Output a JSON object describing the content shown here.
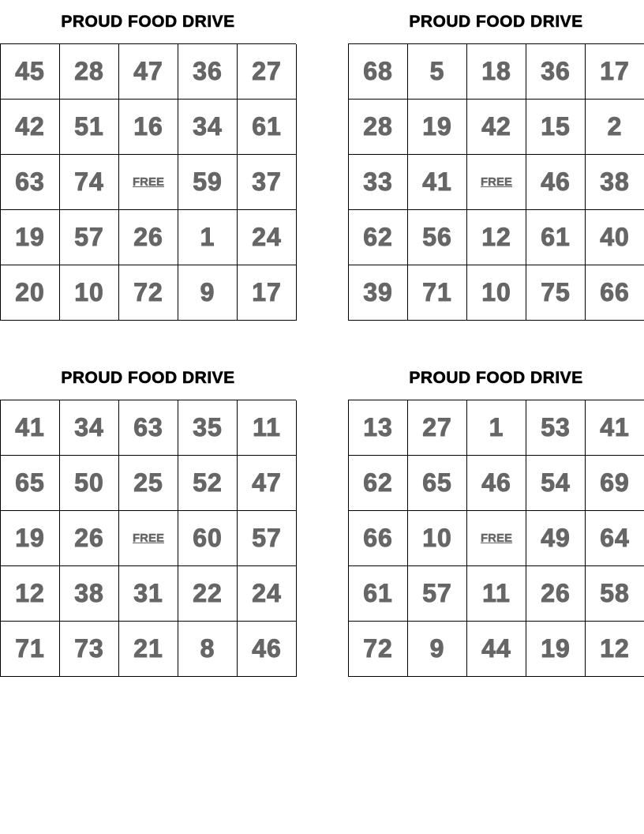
{
  "colors": {
    "number": "#666666",
    "title": "#000000",
    "border": "#000000"
  },
  "cards": [
    {
      "title": "PROUD FOOD DRIVE",
      "cells": [
        [
          "45",
          "28",
          "47",
          "36",
          "27"
        ],
        [
          "42",
          "51",
          "16",
          "34",
          "61"
        ],
        [
          "63",
          "74",
          "FREE",
          "59",
          "37"
        ],
        [
          "19",
          "57",
          "26",
          "1",
          "24"
        ],
        [
          "20",
          "10",
          "72",
          "9",
          "17"
        ]
      ]
    },
    {
      "title": "PROUD FOOD DRIVE",
      "cells": [
        [
          "68",
          "5",
          "18",
          "36",
          "17"
        ],
        [
          "28",
          "19",
          "42",
          "15",
          "2"
        ],
        [
          "33",
          "41",
          "FREE",
          "46",
          "38"
        ],
        [
          "62",
          "56",
          "12",
          "61",
          "40"
        ],
        [
          "39",
          "71",
          "10",
          "75",
          "66"
        ]
      ]
    },
    {
      "title": "PROUD FOOD DRIVE",
      "cells": [
        [
          "41",
          "34",
          "63",
          "35",
          "11"
        ],
        [
          "65",
          "50",
          "25",
          "52",
          "47"
        ],
        [
          "19",
          "26",
          "FREE",
          "60",
          "57"
        ],
        [
          "12",
          "38",
          "31",
          "22",
          "24"
        ],
        [
          "71",
          "73",
          "21",
          "8",
          "46"
        ]
      ]
    },
    {
      "title": "PROUD FOOD DRIVE",
      "cells": [
        [
          "13",
          "27",
          "1",
          "53",
          "41"
        ],
        [
          "62",
          "65",
          "46",
          "54",
          "69"
        ],
        [
          "66",
          "10",
          "FREE",
          "49",
          "64"
        ],
        [
          "61",
          "57",
          "11",
          "26",
          "58"
        ],
        [
          "72",
          "9",
          "44",
          "19",
          "12"
        ]
      ]
    }
  ]
}
